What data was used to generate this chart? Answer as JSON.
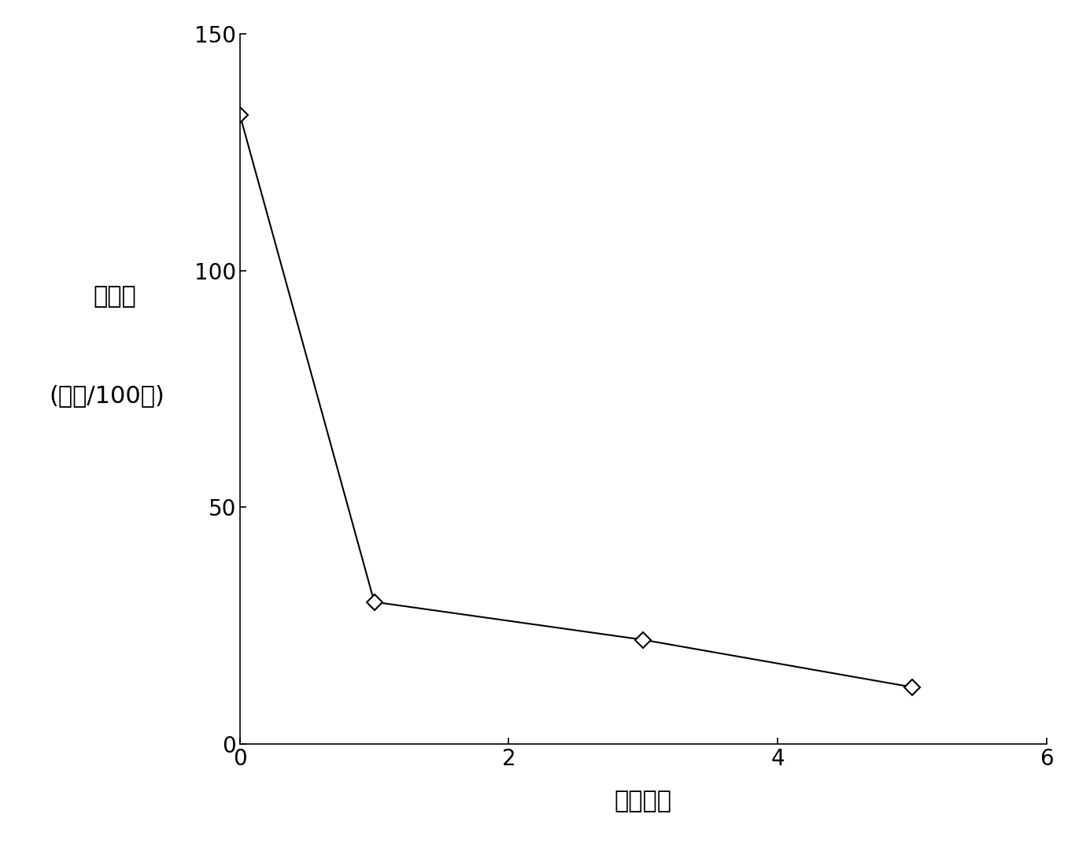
{
  "x": [
    0,
    1,
    3,
    5
  ],
  "y": [
    133,
    30,
    22,
    12
  ],
  "xlim": [
    0,
    6
  ],
  "ylim": [
    0,
    150
  ],
  "xticks": [
    0,
    2,
    4,
    6
  ],
  "yticks": [
    0,
    50,
    100,
    150
  ],
  "xlabel": "处理次数",
  "ylabel_line1": "胆固醇",
  "ylabel_line2": "(毫克/100克)",
  "line_color": "#000000",
  "marker": "D",
  "marker_size": 10,
  "marker_facecolor": "#ffffff",
  "marker_edgecolor": "#000000",
  "background_color": "#ffffff",
  "tick_fontsize": 20,
  "label_fontsize": 22
}
